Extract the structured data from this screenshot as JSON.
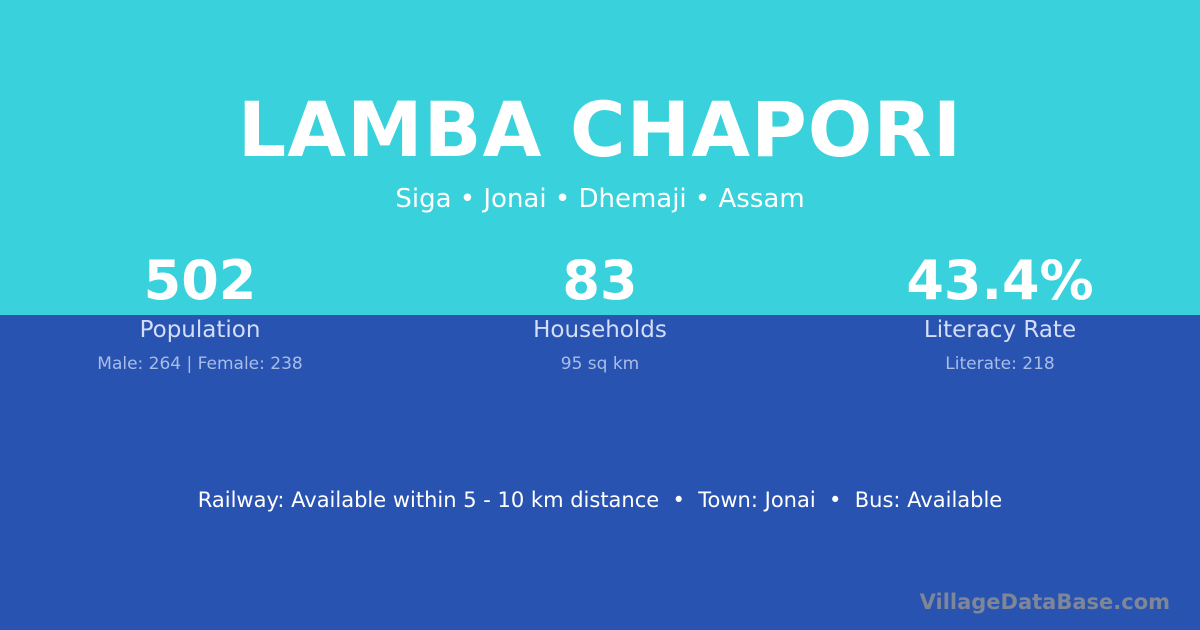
{
  "village": {
    "name": "LAMBA CHAPORI",
    "location": "Siga • Jonai • Dhemaji • Assam"
  },
  "stats": [
    {
      "value": "502",
      "label": "Population",
      "detail": "Male: 264 | Female: 238"
    },
    {
      "value": "83",
      "label": "Households",
      "detail": "95 sq km"
    },
    {
      "value": "43.4%",
      "label": "Literacy Rate",
      "detail": "Literate: 218"
    }
  ],
  "facts": "Railway: Available within 5 - 10 km distance  •  Town: Jonai  •  Bus: Available",
  "brand": "VillageDataBase.com",
  "colors": {
    "top": "#38d1dc",
    "bottom": "#2953b1"
  }
}
